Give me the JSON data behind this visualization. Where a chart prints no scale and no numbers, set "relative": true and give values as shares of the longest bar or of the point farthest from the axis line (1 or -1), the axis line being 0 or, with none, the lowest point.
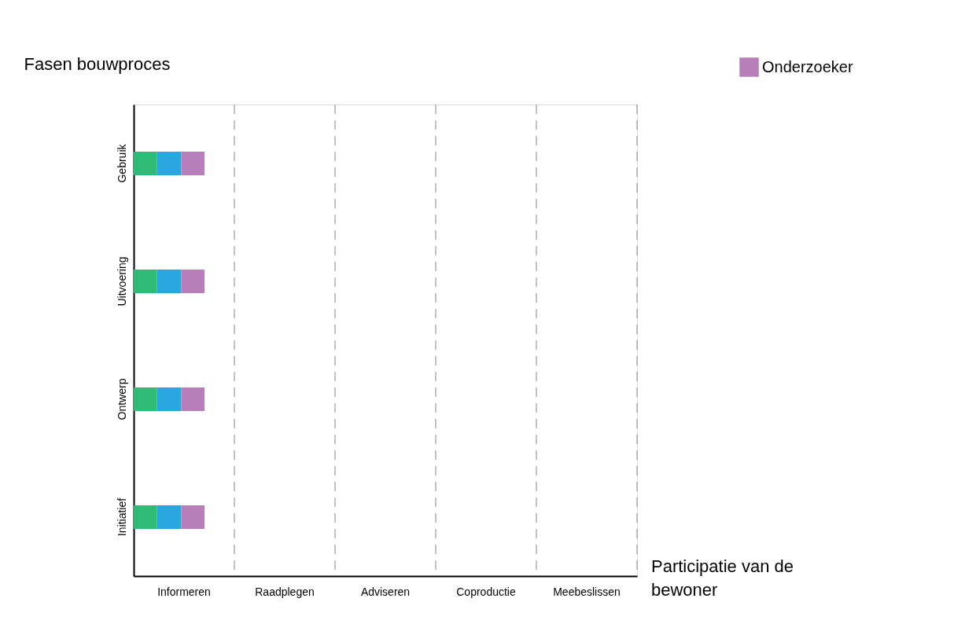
{
  "chart_data": {
    "type": "bar",
    "orientation": "horizontal",
    "stacked": true,
    "relative": true,
    "ylabel": "Fasen bouwproces",
    "categories": [
      "Gebruik",
      "Uitvoering",
      "Ontwerp",
      "Initiatief"
    ],
    "series": [
      {
        "color": "#2dbb75",
        "values": [
          0.33,
          0.33,
          0.33,
          0.33
        ]
      },
      {
        "color": "#29a8e0",
        "values": [
          0.34,
          0.34,
          0.34,
          0.34
        ]
      },
      {
        "name": "Onderzoeker",
        "color": "#b77fb9",
        "values": [
          0.33,
          0.33,
          0.33,
          0.33
        ]
      }
    ],
    "annotations": [
      "Informeren",
      "Raadplegen",
      "Adviseren",
      "Coproductie",
      "Meebeslissen",
      "Participatie van de bewoner"
    ],
    "ref_lines": [
      {
        "axis": "x",
        "value": 1.42,
        "line_style": "dashed",
        "color": "#999999"
      },
      {
        "axis": "x",
        "value": 2.84,
        "line_style": "dashed",
        "color": "#999999"
      },
      {
        "axis": "x",
        "value": 4.26,
        "line_style": "dashed",
        "color": "#999999"
      },
      {
        "axis": "x",
        "value": 5.68,
        "line_style": "dashed",
        "color": "#999999"
      },
      {
        "axis": "x",
        "value": 7.1,
        "line_style": "dashed",
        "color": "#999999"
      }
    ],
    "grid": false,
    "legend": "top right"
  }
}
